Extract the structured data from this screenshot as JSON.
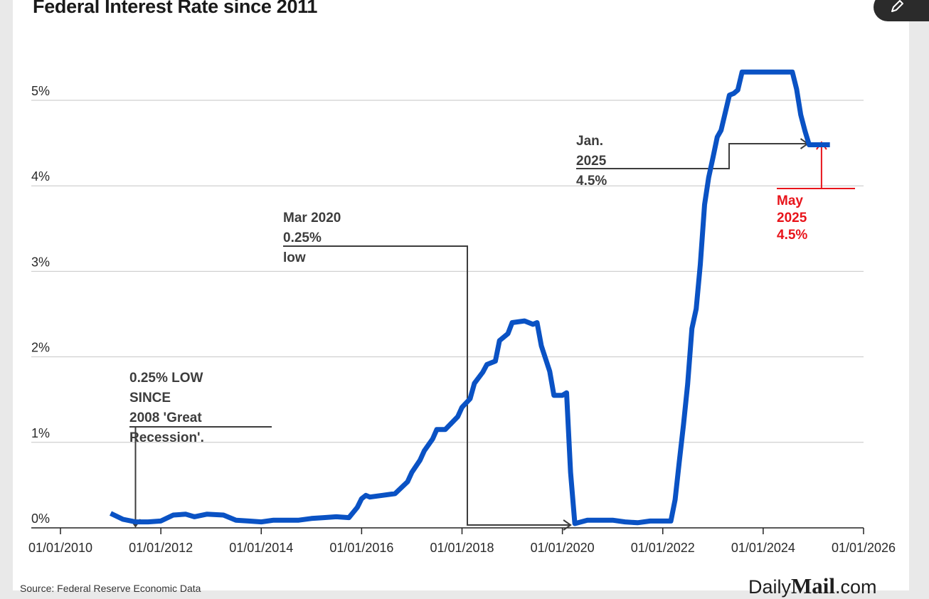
{
  "title": "Federal Interest Rate since 2011",
  "source": "Source: Federal Reserve Economic Data",
  "brand": {
    "prefix": "Daily",
    "middle": "Mail",
    "suffix": ".com"
  },
  "colors": {
    "line": "#0a52c4",
    "annotation": "#3d3d3d",
    "highlight": "#e8141b",
    "grid": "#c6c6c6"
  },
  "icons": {
    "corner": "pencil-icon"
  },
  "chart_data": {
    "type": "line",
    "title": "Federal Interest Rate since 2011",
    "xlabel": "",
    "ylabel": "",
    "xlim": [
      "2010-01-01",
      "2026-01-01"
    ],
    "ylim": [
      0,
      5.5
    ],
    "grid": "horizontal",
    "x_ticks": [
      "01/01/2010",
      "01/01/2012",
      "01/01/2014",
      "01/01/2016",
      "01/01/2018",
      "01/01/2020",
      "01/01/2022",
      "01/01/2024",
      "01/01/2026"
    ],
    "y_ticks": [
      {
        "value": 0,
        "label": "0%"
      },
      {
        "value": 1,
        "label": "1%"
      },
      {
        "value": 2,
        "label": "2%"
      },
      {
        "value": 3,
        "label": "3%"
      },
      {
        "value": 4,
        "label": "4%"
      },
      {
        "value": 5,
        "label": "5%"
      }
    ],
    "series": [
      {
        "points": [
          [
            "2011-01-01",
            0.17
          ],
          [
            "2011-04-01",
            0.1
          ],
          [
            "2011-07-01",
            0.07
          ],
          [
            "2011-10-01",
            0.07
          ],
          [
            "2012-01-01",
            0.08
          ],
          [
            "2012-04-01",
            0.15
          ],
          [
            "2012-07-01",
            0.16
          ],
          [
            "2012-09-01",
            0.13
          ],
          [
            "2012-12-01",
            0.16
          ],
          [
            "2013-04-01",
            0.15
          ],
          [
            "2013-07-01",
            0.09
          ],
          [
            "2013-10-01",
            0.08
          ],
          [
            "2014-01-01",
            0.07
          ],
          [
            "2014-04-01",
            0.09
          ],
          [
            "2014-07-01",
            0.09
          ],
          [
            "2014-10-01",
            0.09
          ],
          [
            "2015-01-01",
            0.11
          ],
          [
            "2015-04-01",
            0.12
          ],
          [
            "2015-07-01",
            0.13
          ],
          [
            "2015-10-01",
            0.12
          ],
          [
            "2015-12-01",
            0.24
          ],
          [
            "2016-01-01",
            0.34
          ],
          [
            "2016-02-01",
            0.38
          ],
          [
            "2016-03-01",
            0.36
          ],
          [
            "2016-06-01",
            0.38
          ],
          [
            "2016-09-01",
            0.4
          ],
          [
            "2016-12-01",
            0.54
          ],
          [
            "2017-01-01",
            0.65
          ],
          [
            "2017-03-01",
            0.79
          ],
          [
            "2017-04-01",
            0.9
          ],
          [
            "2017-06-01",
            1.04
          ],
          [
            "2017-07-01",
            1.15
          ],
          [
            "2017-09-01",
            1.15
          ],
          [
            "2017-12-01",
            1.3
          ],
          [
            "2018-01-01",
            1.41
          ],
          [
            "2018-03-01",
            1.51
          ],
          [
            "2018-04-01",
            1.69
          ],
          [
            "2018-06-01",
            1.82
          ],
          [
            "2018-07-01",
            1.91
          ],
          [
            "2018-09-01",
            1.95
          ],
          [
            "2018-10-01",
            2.19
          ],
          [
            "2018-12-01",
            2.27
          ],
          [
            "2019-01-01",
            2.4
          ],
          [
            "2019-04-01",
            2.42
          ],
          [
            "2019-06-01",
            2.38
          ],
          [
            "2019-07-01",
            2.4
          ],
          [
            "2019-08-01",
            2.13
          ],
          [
            "2019-10-01",
            1.83
          ],
          [
            "2019-11-01",
            1.55
          ],
          [
            "2020-01-01",
            1.55
          ],
          [
            "2020-02-01",
            1.58
          ],
          [
            "2020-03-01",
            0.65
          ],
          [
            "2020-04-01",
            0.05
          ],
          [
            "2020-07-01",
            0.09
          ],
          [
            "2020-10-01",
            0.09
          ],
          [
            "2021-01-01",
            0.09
          ],
          [
            "2021-04-01",
            0.07
          ],
          [
            "2021-07-01",
            0.06
          ],
          [
            "2021-10-01",
            0.08
          ],
          [
            "2022-01-01",
            0.08
          ],
          [
            "2022-03-01",
            0.08
          ],
          [
            "2022-04-01",
            0.33
          ],
          [
            "2022-05-01",
            0.77
          ],
          [
            "2022-06-01",
            1.21
          ],
          [
            "2022-07-01",
            1.68
          ],
          [
            "2022-08-01",
            2.33
          ],
          [
            "2022-09-01",
            2.56
          ],
          [
            "2022-10-01",
            3.08
          ],
          [
            "2022-11-01",
            3.78
          ],
          [
            "2022-12-01",
            4.1
          ],
          [
            "2023-01-01",
            4.33
          ],
          [
            "2023-02-01",
            4.57
          ],
          [
            "2023-03-01",
            4.65
          ],
          [
            "2023-05-01",
            5.06
          ],
          [
            "2023-06-01",
            5.08
          ],
          [
            "2023-07-01",
            5.12
          ],
          [
            "2023-08-01",
            5.33
          ],
          [
            "2023-10-01",
            5.33
          ],
          [
            "2024-01-01",
            5.33
          ],
          [
            "2024-06-01",
            5.33
          ],
          [
            "2024-08-01",
            5.33
          ],
          [
            "2024-09-01",
            5.13
          ],
          [
            "2024-10-01",
            4.83
          ],
          [
            "2024-11-01",
            4.64
          ],
          [
            "2024-12-01",
            4.48
          ],
          [
            "2025-01-01",
            4.48
          ],
          [
            "2025-05-01",
            4.48
          ]
        ]
      }
    ],
    "annotations": [
      {
        "id": "low-2011",
        "lines": [
          "0.25% LOW",
          "SINCE",
          "2008 'Great",
          "Recession'."
        ],
        "color": "annotation",
        "target": [
          "2011-07-01",
          0
        ]
      },
      {
        "id": "mar-2020",
        "lines": [
          "Mar 2020",
          "0.25%",
          "low"
        ],
        "color": "annotation",
        "target": [
          "2020-04-01",
          0
        ]
      },
      {
        "id": "jan-2025",
        "lines": [
          "Jan.",
          "2025",
          "4.5%"
        ],
        "color": "annotation",
        "target": [
          "2024-12-01",
          4.5
        ]
      },
      {
        "id": "may-2025",
        "lines": [
          "May",
          "2025",
          "4.5%"
        ],
        "color": "highlight",
        "target": [
          "2025-03-01",
          4.5
        ]
      }
    ]
  }
}
